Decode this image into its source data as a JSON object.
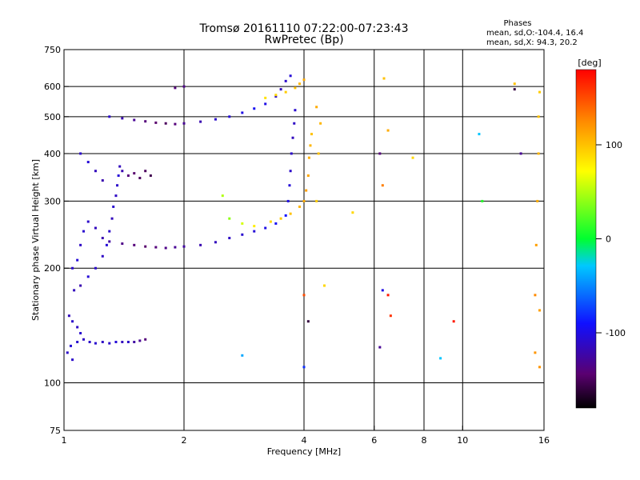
{
  "chart_data": {
    "type": "scatter",
    "title": "Tromsø 20161110 07:22:00-07:23:43",
    "subtitle": "RwPretec (Bp)",
    "xlabel": "Frequency [MHz]",
    "ylabel": "Stationary phase Virtual Height [km]",
    "x_scale": "log",
    "y_scale": "log",
    "xlim": [
      1,
      16
    ],
    "ylim": [
      75,
      750
    ],
    "x_ticks": [
      1,
      2,
      4,
      6,
      8,
      10,
      16
    ],
    "y_ticks": [
      75,
      100,
      200,
      300,
      400,
      500,
      600,
      750
    ],
    "x_grid": [
      2,
      4,
      6,
      8,
      10
    ],
    "y_grid": [
      100,
      200,
      300,
      400,
      500,
      600
    ],
    "grid": true,
    "stats": {
      "heading": "Phases",
      "line_o": "mean, sd,O:-104.4, 16.4",
      "line_x": "mean, sd,X:  94.3, 20.2"
    },
    "colorbar": {
      "label": "[deg]",
      "range": [
        -180,
        180
      ],
      "ticks": [
        100,
        0,
        -100
      ],
      "placement": "right"
    },
    "series": [
      {
        "points": [
          [
            1.02,
            120,
            -110
          ],
          [
            1.04,
            125,
            -105
          ],
          [
            1.05,
            115,
            -110
          ],
          [
            1.08,
            128,
            -108
          ],
          [
            1.12,
            130,
            -112
          ],
          [
            1.16,
            128,
            -110
          ],
          [
            1.2,
            127,
            -108
          ],
          [
            1.25,
            128,
            -112
          ],
          [
            1.3,
            127,
            -110
          ],
          [
            1.35,
            128,
            -105
          ],
          [
            1.4,
            128,
            -115
          ],
          [
            1.45,
            128,
            -110
          ],
          [
            1.5,
            128,
            -125
          ],
          [
            1.55,
            129,
            -130
          ],
          [
            1.6,
            130,
            -140
          ],
          [
            1.03,
            150,
            -115
          ],
          [
            1.05,
            145,
            -110
          ],
          [
            1.08,
            140,
            -112
          ],
          [
            1.1,
            135,
            -108
          ],
          [
            1.06,
            175,
            -115
          ],
          [
            1.1,
            180,
            -120
          ],
          [
            1.15,
            190,
            -105
          ],
          [
            1.2,
            200,
            -110
          ],
          [
            1.25,
            215,
            -112
          ],
          [
            1.28,
            230,
            -105
          ],
          [
            1.3,
            250,
            -110
          ],
          [
            1.32,
            270,
            -115
          ],
          [
            1.33,
            290,
            -108
          ],
          [
            1.35,
            310,
            -112
          ],
          [
            1.36,
            330,
            -110
          ],
          [
            1.37,
            350,
            -105
          ],
          [
            1.38,
            370,
            -115
          ],
          [
            1.4,
            360,
            -120
          ],
          [
            1.45,
            350,
            -140
          ],
          [
            1.5,
            355,
            -145
          ],
          [
            1.55,
            345,
            -150
          ],
          [
            1.05,
            200,
            -110
          ],
          [
            1.08,
            210,
            -105
          ],
          [
            1.1,
            230,
            -112
          ],
          [
            1.12,
            250,
            -108
          ],
          [
            1.15,
            265,
            -110
          ],
          [
            1.2,
            255,
            -115
          ],
          [
            1.25,
            240,
            -120
          ],
          [
            1.3,
            235,
            -125
          ],
          [
            1.4,
            232,
            -135
          ],
          [
            1.5,
            230,
            -140
          ],
          [
            1.6,
            228,
            -145
          ],
          [
            1.7,
            227,
            -140
          ],
          [
            1.8,
            226,
            -135
          ],
          [
            1.9,
            227,
            -130
          ],
          [
            2.0,
            228,
            -125
          ],
          [
            2.2,
            230,
            -120
          ],
          [
            2.4,
            234,
            -115
          ],
          [
            2.6,
            240,
            -112
          ],
          [
            2.8,
            245,
            -108
          ],
          [
            3.0,
            250,
            -105
          ],
          [
            3.2,
            255,
            -100
          ],
          [
            3.4,
            262,
            -95
          ],
          [
            3.6,
            275,
            -90
          ],
          [
            3.65,
            300,
            -100
          ],
          [
            3.68,
            330,
            -105
          ],
          [
            3.7,
            360,
            -110
          ],
          [
            3.72,
            400,
            -110
          ],
          [
            3.75,
            440,
            -115
          ],
          [
            3.78,
            480,
            -112
          ],
          [
            3.8,
            520,
            -108
          ],
          [
            1.3,
            500,
            -110
          ],
          [
            1.4,
            495,
            -120
          ],
          [
            1.5,
            490,
            -130
          ],
          [
            1.6,
            486,
            -140
          ],
          [
            1.7,
            482,
            -145
          ],
          [
            1.8,
            480,
            -150
          ],
          [
            1.9,
            478,
            -140
          ],
          [
            2.0,
            480,
            -130
          ],
          [
            2.2,
            485,
            -120
          ],
          [
            2.4,
            492,
            -110
          ],
          [
            2.6,
            500,
            -105
          ],
          [
            2.8,
            512,
            -100
          ],
          [
            3.0,
            525,
            -95
          ],
          [
            3.2,
            540,
            -100
          ],
          [
            3.4,
            565,
            -110
          ],
          [
            3.5,
            590,
            -115
          ],
          [
            3.6,
            620,
            -110
          ],
          [
            3.7,
            640,
            -105
          ],
          [
            1.1,
            400,
            -110
          ],
          [
            1.15,
            380,
            -105
          ],
          [
            1.2,
            360,
            -115
          ],
          [
            1.25,
            340,
            -120
          ],
          [
            1.6,
            360,
            -150
          ],
          [
            1.65,
            350,
            -155
          ],
          [
            1.9,
            595,
            -140
          ],
          [
            2.0,
            600,
            -135
          ]
        ]
      },
      {
        "points": [
          [
            3.3,
            265,
            90
          ],
          [
            3.5,
            270,
            95
          ],
          [
            3.7,
            278,
            100
          ],
          [
            3.9,
            290,
            105
          ],
          [
            4.0,
            300,
            110
          ],
          [
            4.05,
            320,
            115
          ],
          [
            4.1,
            350,
            112
          ],
          [
            4.12,
            390,
            108
          ],
          [
            4.15,
            420,
            105
          ],
          [
            4.18,
            450,
            100
          ],
          [
            3.2,
            560,
            85
          ],
          [
            3.4,
            570,
            90
          ],
          [
            3.6,
            580,
            95
          ],
          [
            3.8,
            595,
            100
          ],
          [
            3.9,
            610,
            105
          ],
          [
            4.0,
            625,
            110
          ],
          [
            2.6,
            270,
            40
          ],
          [
            2.8,
            262,
            60
          ],
          [
            3.0,
            258,
            80
          ],
          [
            2.5,
            310,
            50
          ],
          [
            4.3,
            300,
            95
          ],
          [
            4.35,
            400,
            100
          ],
          [
            4.4,
            480,
            105
          ],
          [
            4.3,
            530,
            110
          ],
          [
            5.3,
            280,
            90
          ],
          [
            6.3,
            330,
            130
          ],
          [
            6.35,
            630,
            100
          ],
          [
            6.5,
            460,
            110
          ],
          [
            7.5,
            390,
            90
          ],
          [
            13.5,
            610,
            100
          ],
          [
            15.2,
            120,
            120
          ],
          [
            15.2,
            170,
            125
          ],
          [
            15.3,
            230,
            115
          ],
          [
            15.4,
            300,
            110
          ],
          [
            15.5,
            400,
            105
          ],
          [
            15.5,
            500,
            100
          ],
          [
            15.6,
            580,
            95
          ],
          [
            15.6,
            110,
            120
          ],
          [
            15.6,
            155,
            115
          ],
          [
            4.0,
            170,
            150
          ],
          [
            4.5,
            180,
            90
          ],
          [
            6.5,
            170,
            170
          ],
          [
            6.6,
            150,
            160
          ],
          [
            9.5,
            145,
            170
          ],
          [
            6.2,
            400,
            -140
          ],
          [
            6.2,
            124,
            -130
          ],
          [
            6.3,
            175,
            -100
          ],
          [
            11.0,
            450,
            -30
          ],
          [
            11.2,
            300,
            10
          ],
          [
            13.5,
            590,
            -160
          ],
          [
            14.0,
            400,
            -130
          ],
          [
            8.8,
            116,
            -30
          ],
          [
            4.0,
            110,
            -80
          ],
          [
            4.1,
            145,
            -160
          ],
          [
            2.8,
            118,
            -40
          ]
        ]
      }
    ]
  }
}
